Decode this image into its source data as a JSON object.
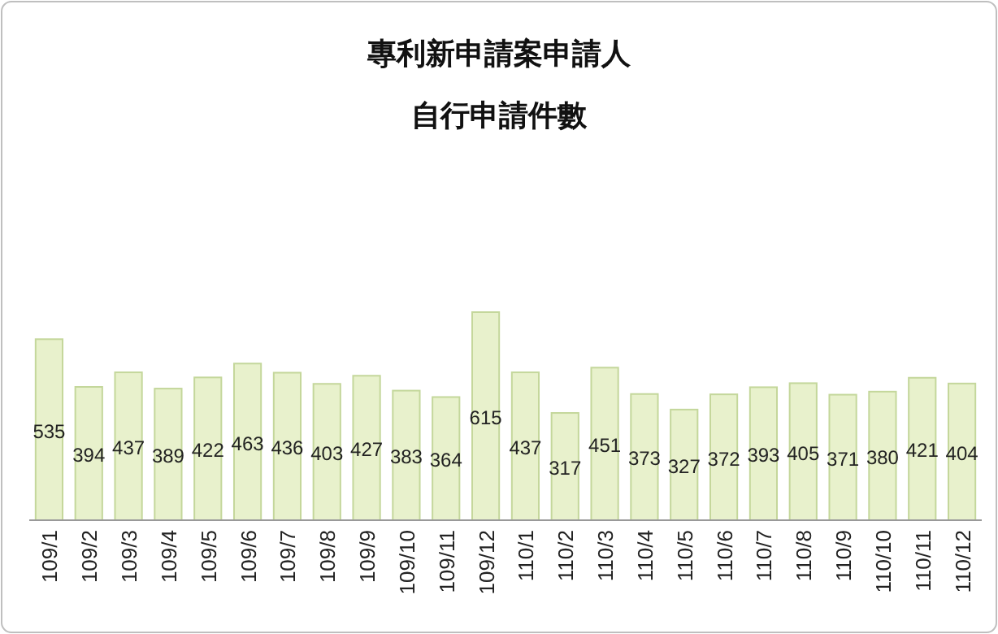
{
  "chart_data": {
    "type": "bar",
    "title": "專利新申請案申請人",
    "subtitle": "自行申請件數",
    "categories": [
      "109/1",
      "109/2",
      "109/3",
      "109/4",
      "109/5",
      "109/6",
      "109/7",
      "109/8",
      "109/9",
      "109/10",
      "109/11",
      "109/12",
      "110/1",
      "110/2",
      "110/3",
      "110/4",
      "110/5",
      "110/6",
      "110/7",
      "110/8",
      "110/9",
      "110/10",
      "110/11",
      "110/12"
    ],
    "values": [
      535,
      394,
      437,
      389,
      422,
      463,
      436,
      403,
      427,
      383,
      364,
      615,
      437,
      317,
      451,
      373,
      327,
      372,
      393,
      405,
      371,
      380,
      421,
      404
    ],
    "color": "#e8f1cc",
    "data_labels": true
  }
}
